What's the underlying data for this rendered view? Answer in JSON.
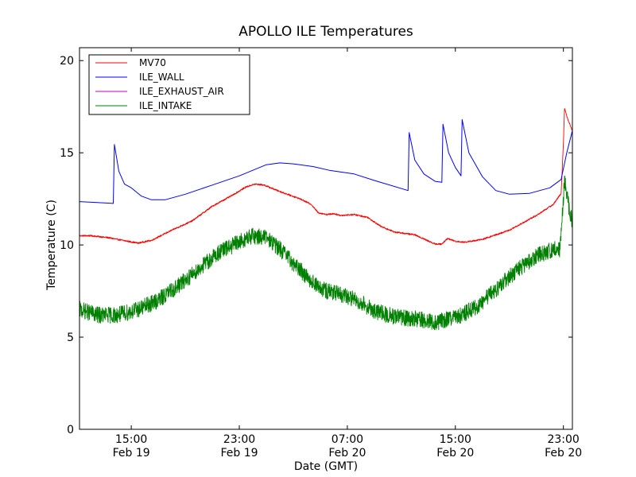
{
  "chart_data": {
    "type": "line",
    "title": "APOLLO ILE Temperatures",
    "xlabel": "Date (GMT)",
    "ylabel": "Temperature (C)",
    "x_unit": "hours (timestamp)",
    "xlim": [
      "2013-02-19 11:10",
      "2013-02-20 23:40"
    ],
    "ylim": [
      0,
      20.7
    ],
    "yticks": [
      0,
      5,
      10,
      15,
      20
    ],
    "xticks": [
      {
        "value": "2013-02-19 15:00",
        "time": "15:00",
        "date": "Feb 19"
      },
      {
        "value": "2013-02-19 23:00",
        "time": "23:00",
        "date": "Feb 19"
      },
      {
        "value": "2013-02-20 07:00",
        "time": "07:00",
        "date": "Feb 20"
      },
      {
        "value": "2013-02-20 15:00",
        "time": "15:00",
        "date": "Feb 20"
      },
      {
        "value": "2013-02-20 23:00",
        "time": "23:00",
        "date": "Feb 20"
      }
    ],
    "legend_position": "top-left",
    "grid": false,
    "series": [
      {
        "name": "MV70",
        "color": "#ff0000",
        "noise": 0.04,
        "points": [
          [
            "2013-02-19 11:10",
            10.5
          ],
          [
            "2013-02-19 12:00",
            10.5
          ],
          [
            "2013-02-19 13:15",
            10.4
          ],
          [
            "2013-02-19 14:45",
            10.2
          ],
          [
            "2013-02-19 15:30",
            10.1
          ],
          [
            "2013-02-19 16:30",
            10.25
          ],
          [
            "2013-02-19 18:00",
            10.8
          ],
          [
            "2013-02-19 19:30",
            11.3
          ],
          [
            "2013-02-19 21:00",
            12.1
          ],
          [
            "2013-02-19 22:30",
            12.7
          ],
          [
            "2013-02-19 23:30",
            13.15
          ],
          [
            "2013-02-20 00:10",
            13.3
          ],
          [
            "2013-02-20 00:50",
            13.25
          ],
          [
            "2013-02-20 02:00",
            12.9
          ],
          [
            "2013-02-20 03:30",
            12.5
          ],
          [
            "2013-02-20 04:20",
            12.2
          ],
          [
            "2013-02-20 04:50",
            11.75
          ],
          [
            "2013-02-20 05:30",
            11.65
          ],
          [
            "2013-02-20 06:00",
            11.7
          ],
          [
            "2013-02-20 06:30",
            11.6
          ],
          [
            "2013-02-20 07:30",
            11.65
          ],
          [
            "2013-02-20 08:30",
            11.5
          ],
          [
            "2013-02-20 09:30",
            11.0
          ],
          [
            "2013-02-20 10:30",
            10.7
          ],
          [
            "2013-02-20 12:00",
            10.55
          ],
          [
            "2013-02-20 13:30",
            10.05
          ],
          [
            "2013-02-20 14:00",
            10.05
          ],
          [
            "2013-02-20 14:25",
            10.35
          ],
          [
            "2013-02-20 15:00",
            10.2
          ],
          [
            "2013-02-20 15:40",
            10.15
          ],
          [
            "2013-02-20 17:00",
            10.3
          ],
          [
            "2013-02-20 19:00",
            10.8
          ],
          [
            "2013-02-20 21:00",
            11.6
          ],
          [
            "2013-02-20 22:15",
            12.2
          ],
          [
            "2013-02-20 22:50",
            12.8
          ],
          [
            "2013-02-20 23:00",
            15.5
          ],
          [
            "2013-02-20 23:05",
            17.4
          ],
          [
            "2013-02-20 23:20",
            16.8
          ],
          [
            "2013-02-20 23:40",
            16.2
          ]
        ]
      },
      {
        "name": "ILE_WALL",
        "color": "#0000ff",
        "noise": 0,
        "points": [
          [
            "2013-02-19 11:10",
            12.35
          ],
          [
            "2013-02-19 12:30",
            12.3
          ],
          [
            "2013-02-19 13:40",
            12.25
          ],
          [
            "2013-02-19 13:45",
            15.45
          ],
          [
            "2013-02-19 14:05",
            14.0
          ],
          [
            "2013-02-19 14:30",
            13.3
          ],
          [
            "2013-02-19 15:00",
            13.1
          ],
          [
            "2013-02-19 15:45",
            12.65
          ],
          [
            "2013-02-19 16:30",
            12.45
          ],
          [
            "2013-02-19 17:30",
            12.45
          ],
          [
            "2013-02-19 19:00",
            12.75
          ],
          [
            "2013-02-19 21:00",
            13.25
          ],
          [
            "2013-02-19 23:00",
            13.75
          ],
          [
            "2013-02-20 01:00",
            14.35
          ],
          [
            "2013-02-20 02:00",
            14.45
          ],
          [
            "2013-02-20 03:00",
            14.4
          ],
          [
            "2013-02-20 04:30",
            14.25
          ],
          [
            "2013-02-20 05:40",
            14.05
          ],
          [
            "2013-02-20 07:30",
            13.85
          ],
          [
            "2013-02-20 09:00",
            13.5
          ],
          [
            "2013-02-20 11:30",
            12.95
          ],
          [
            "2013-02-20 11:35",
            16.1
          ],
          [
            "2013-02-20 12:00",
            14.6
          ],
          [
            "2013-02-20 12:40",
            13.85
          ],
          [
            "2013-02-20 13:30",
            13.45
          ],
          [
            "2013-02-20 14:00",
            13.4
          ],
          [
            "2013-02-20 14:05",
            16.55
          ],
          [
            "2013-02-20 14:30",
            15.0
          ],
          [
            "2013-02-20 15:00",
            14.2
          ],
          [
            "2013-02-20 15:25",
            13.75
          ],
          [
            "2013-02-20 15:30",
            16.8
          ],
          [
            "2013-02-20 16:00",
            15.0
          ],
          [
            "2013-02-20 17:00",
            13.7
          ],
          [
            "2013-02-20 18:00",
            12.95
          ],
          [
            "2013-02-20 19:00",
            12.75
          ],
          [
            "2013-02-20 20:30",
            12.8
          ],
          [
            "2013-02-20 22:00",
            13.1
          ],
          [
            "2013-02-20 22:50",
            13.55
          ],
          [
            "2013-02-20 23:15",
            15.0
          ],
          [
            "2013-02-20 23:40",
            16.2
          ]
        ]
      },
      {
        "name": "ILE_EXHAUST_AIR",
        "color": "#bf00bf",
        "noise": 0,
        "points": []
      },
      {
        "name": "ILE_INTAKE",
        "color": "#008000",
        "noise": 0.45,
        "points": [
          [
            "2013-02-19 11:10",
            6.5
          ],
          [
            "2013-02-19 12:30",
            6.2
          ],
          [
            "2013-02-19 14:00",
            6.2
          ],
          [
            "2013-02-19 15:30",
            6.5
          ],
          [
            "2013-02-19 17:00",
            7.0
          ],
          [
            "2013-02-19 18:30",
            7.8
          ],
          [
            "2013-02-19 20:00",
            8.7
          ],
          [
            "2013-02-19 21:30",
            9.6
          ],
          [
            "2013-02-19 23:00",
            10.15
          ],
          [
            "2013-02-20 00:00",
            10.5
          ],
          [
            "2013-02-20 01:00",
            10.4
          ],
          [
            "2013-02-20 02:00",
            9.8
          ],
          [
            "2013-02-20 03:00",
            9.0
          ],
          [
            "2013-02-20 04:00",
            8.3
          ],
          [
            "2013-02-20 05:00",
            7.6
          ],
          [
            "2013-02-20 06:00",
            7.4
          ],
          [
            "2013-02-20 07:00",
            7.2
          ],
          [
            "2013-02-20 08:00",
            6.9
          ],
          [
            "2013-02-20 09:00",
            6.4
          ],
          [
            "2013-02-20 10:30",
            6.1
          ],
          [
            "2013-02-20 12:00",
            6.0
          ],
          [
            "2013-02-20 13:30",
            5.8
          ],
          [
            "2013-02-20 15:00",
            6.05
          ],
          [
            "2013-02-20 16:30",
            6.6
          ],
          [
            "2013-02-20 18:00",
            7.6
          ],
          [
            "2013-02-20 19:30",
            8.6
          ],
          [
            "2013-02-20 21:00",
            9.4
          ],
          [
            "2013-02-20 22:00",
            9.7
          ],
          [
            "2013-02-20 22:45",
            9.8
          ],
          [
            "2013-02-20 23:05",
            13.5
          ],
          [
            "2013-02-20 23:20",
            12.3
          ],
          [
            "2013-02-20 23:40",
            11.2
          ]
        ]
      }
    ]
  }
}
